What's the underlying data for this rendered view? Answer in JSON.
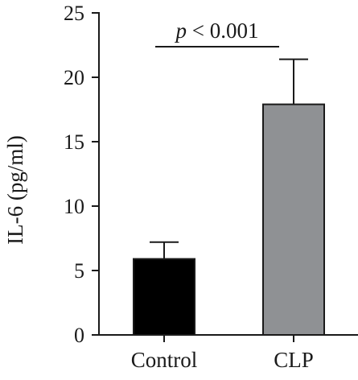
{
  "chart_data": {
    "type": "bar",
    "title": "",
    "xlabel": "",
    "ylabel": "IL-6 (pg/ml)",
    "categories": [
      "Control",
      "CLP"
    ],
    "values": [
      5.9,
      17.9
    ],
    "error_upper": [
      7.2,
      21.4
    ],
    "ylim": [
      0,
      25
    ],
    "yticks": [
      0,
      5,
      10,
      15,
      20,
      25
    ],
    "bar_colors": [
      "#000000",
      "#8f9194"
    ],
    "grid": false,
    "annotation": {
      "p_symbol": "p",
      "text": " < 0.001",
      "between": [
        "Control",
        "CLP"
      ]
    }
  }
}
